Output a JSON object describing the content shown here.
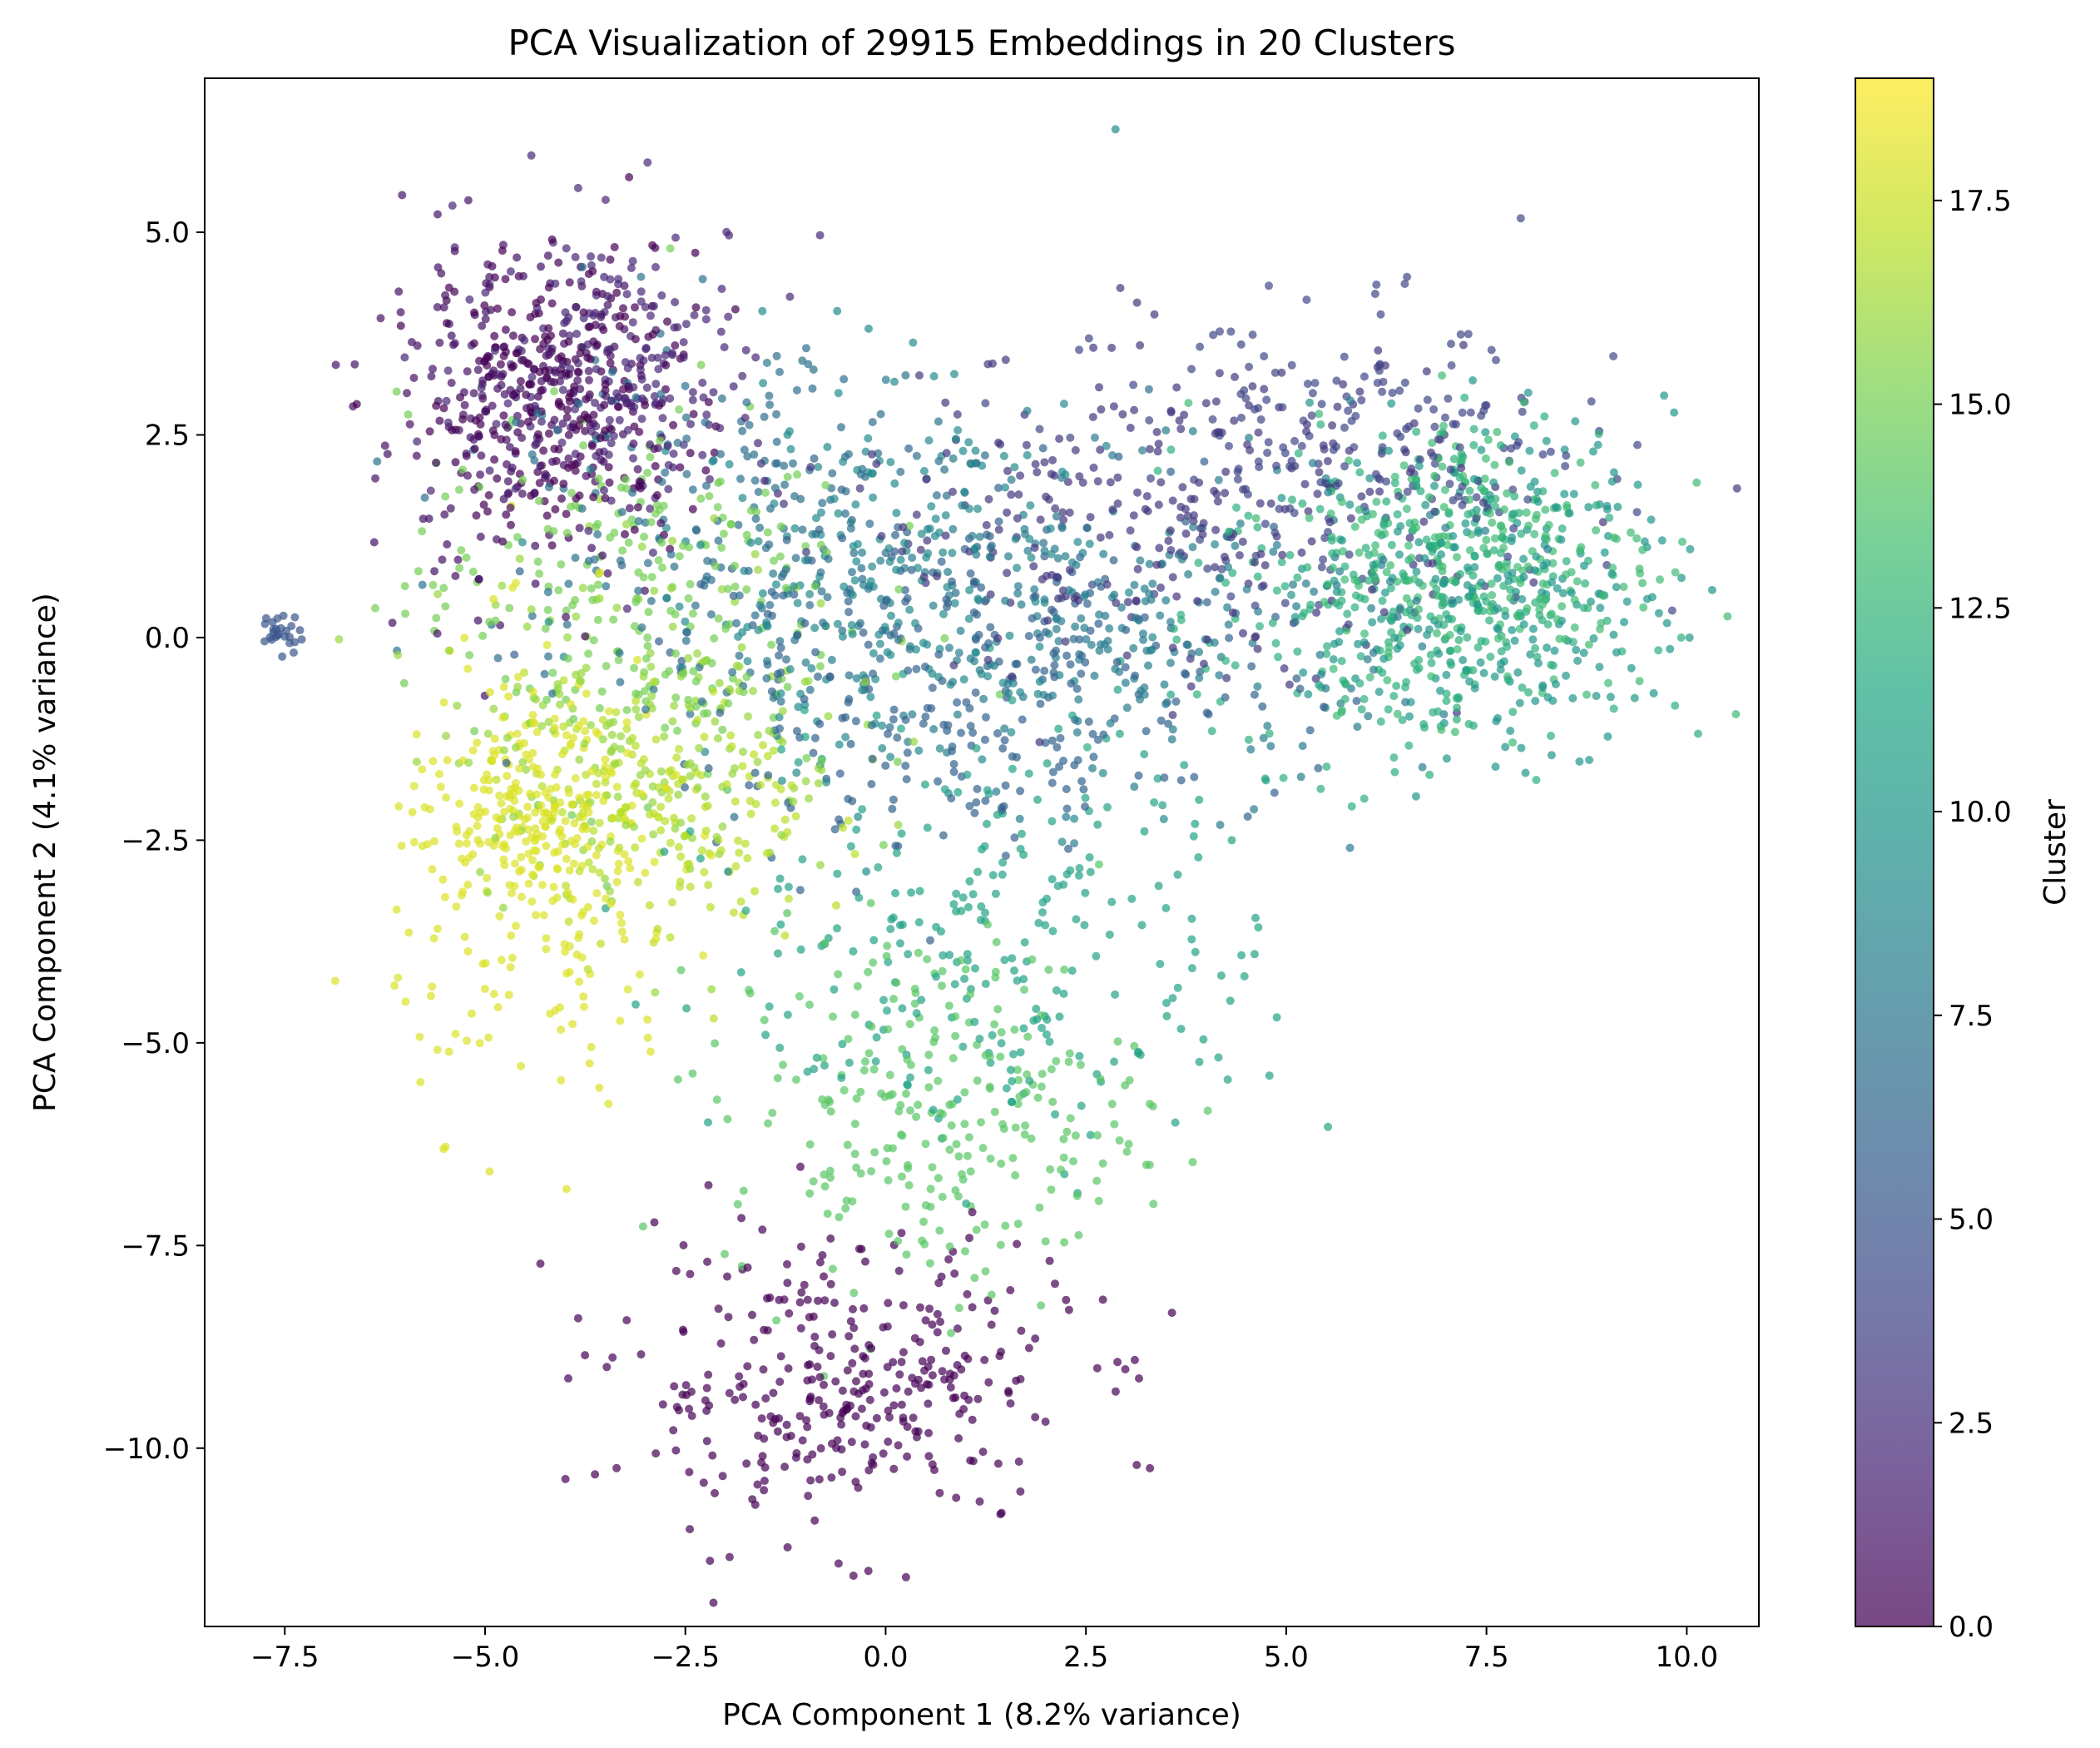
{
  "chart_data": {
    "type": "scatter",
    "title": "PCA Visualization of 29915 Embeddings in 20 Clusters",
    "xlabel": "PCA Component 1 (8.2% variance)",
    "ylabel": "PCA Component 2 (4.1% variance)",
    "xlim": [
      -8.5,
      10.9
    ],
    "ylim": [
      -12.2,
      6.9
    ],
    "xticks": [
      -7.5,
      -5.0,
      -2.5,
      0.0,
      2.5,
      5.0,
      7.5,
      10.0
    ],
    "xtick_labels": [
      "−7.5",
      "−5.0",
      "−2.5",
      "0.0",
      "2.5",
      "5.0",
      "7.5",
      "10.0"
    ],
    "yticks": [
      5.0,
      2.5,
      0.0,
      -2.5,
      -5.0,
      -7.5,
      -10.0
    ],
    "ytick_labels": [
      "5.0",
      "2.5",
      "0.0",
      "−2.5",
      "−5.0",
      "−7.5",
      "−10.0"
    ],
    "grid": false,
    "colormap": "viridis",
    "point_alpha": 0.7,
    "total_points": 29915,
    "n_clusters": 20,
    "colorbar": {
      "label": "Cluster",
      "range": [
        0.0,
        19.0
      ],
      "ticks": [
        0.0,
        2.5,
        5.0,
        7.5,
        10.0,
        12.5,
        15.0,
        17.5
      ],
      "tick_labels": [
        "0.0",
        "2.5",
        "5.0",
        "7.5",
        "10.0",
        "12.5",
        "15.0",
        "17.5"
      ]
    },
    "clusters": [
      {
        "cluster": 0,
        "center": [
          -4.0,
          3.0
        ],
        "spread": [
          0.8,
          0.9
        ],
        "weight": 1.0
      },
      {
        "cluster": 0,
        "center": [
          -0.5,
          -9.2
        ],
        "spread": [
          1.4,
          0.9
        ],
        "weight": 1.3
      },
      {
        "cluster": 1,
        "center": [
          -4.7,
          2.6
        ],
        "spread": [
          0.9,
          1.0
        ],
        "weight": 0.8
      },
      {
        "cluster": 2,
        "center": [
          -3.3,
          3.4
        ],
        "spread": [
          1.0,
          0.9
        ],
        "weight": 0.8
      },
      {
        "cluster": 3,
        "center": [
          3.5,
          1.5
        ],
        "spread": [
          2.0,
          1.0
        ],
        "weight": 1.1
      },
      {
        "cluster": 4,
        "center": [
          6.0,
          2.2
        ],
        "spread": [
          1.6,
          0.9
        ],
        "weight": 0.8
      },
      {
        "cluster": 5,
        "center": [
          -7.55,
          0.05
        ],
        "spread": [
          0.12,
          0.13
        ],
        "weight": 0.1
      },
      {
        "cluster": 6,
        "center": [
          1.2,
          -0.5
        ],
        "spread": [
          1.9,
          1.1
        ],
        "weight": 1.2
      },
      {
        "cluster": 7,
        "center": [
          -2.0,
          1.5
        ],
        "spread": [
          1.6,
          1.3
        ],
        "weight": 0.9
      },
      {
        "cluster": 8,
        "center": [
          3.0,
          0.2
        ],
        "spread": [
          1.9,
          1.0
        ],
        "weight": 1.0
      },
      {
        "cluster": 9,
        "center": [
          0.0,
          0.7
        ],
        "spread": [
          1.5,
          1.3
        ],
        "weight": 0.9
      },
      {
        "cluster": 10,
        "center": [
          7.6,
          0.6
        ],
        "spread": [
          1.1,
          1.0
        ],
        "weight": 1.0
      },
      {
        "cluster": 11,
        "center": [
          1.5,
          -3.6
        ],
        "spread": [
          1.7,
          1.4
        ],
        "weight": 1.0
      },
      {
        "cluster": 12,
        "center": [
          6.5,
          0.3
        ],
        "spread": [
          1.2,
          1.1
        ],
        "weight": 1.1
      },
      {
        "cluster": 13,
        "center": [
          7.5,
          1.0
        ],
        "spread": [
          1.1,
          0.9
        ],
        "weight": 0.9
      },
      {
        "cluster": 14,
        "center": [
          0.6,
          -5.8
        ],
        "spread": [
          1.3,
          1.1
        ],
        "weight": 1.0
      },
      {
        "cluster": 15,
        "center": [
          -3.2,
          0.5
        ],
        "spread": [
          1.4,
          1.2
        ],
        "weight": 0.9
      },
      {
        "cluster": 16,
        "center": [
          -3.0,
          -1.0
        ],
        "spread": [
          1.3,
          1.1
        ],
        "weight": 0.8
      },
      {
        "cluster": 17,
        "center": [
          -2.7,
          -2.2
        ],
        "spread": [
          0.9,
          0.8
        ],
        "weight": 0.6
      },
      {
        "cluster": 18,
        "center": [
          -4.3,
          -3.0
        ],
        "spread": [
          0.9,
          1.4
        ],
        "weight": 0.9
      },
      {
        "cluster": 18,
        "center": [
          -4.4,
          -2.0
        ],
        "spread": [
          0.6,
          0.5
        ],
        "weight": 0.5
      }
    ]
  }
}
